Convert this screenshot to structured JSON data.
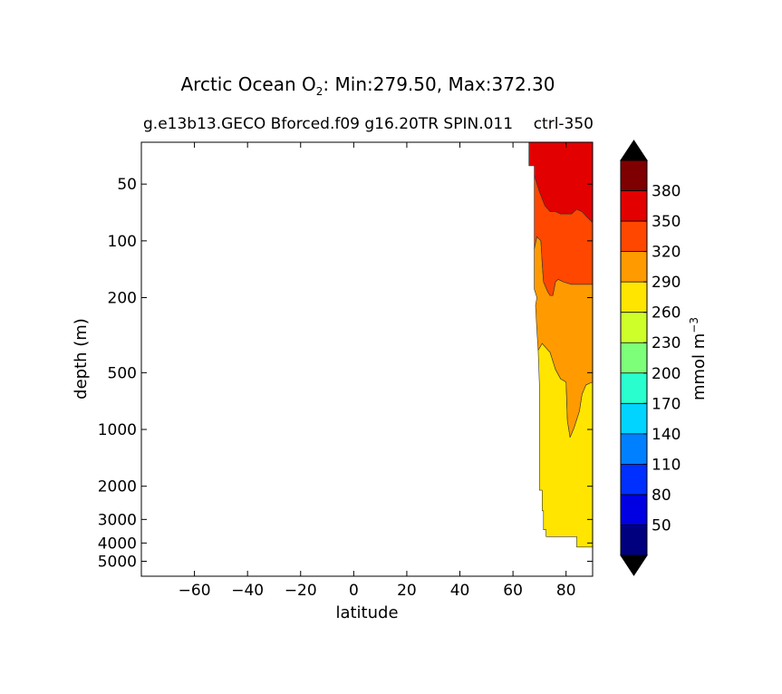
{
  "chart_data": {
    "type": "contourf",
    "title": {
      "prefix": "Arctic Ocean O",
      "subscript": "2",
      "suffix": ": Min:279.50, Max:372.30"
    },
    "subtitle_left": "g.e13b13.GECO Bforced.f09 g16.20TR SPIN.011",
    "subtitle_right": "ctrl-350",
    "xlabel": "latitude",
    "ylabel": "depth (m)",
    "xlim": [
      -80,
      90
    ],
    "xticks": [
      -60,
      -40,
      -20,
      0,
      20,
      40,
      60,
      80
    ],
    "xtick_labels": [
      "−60",
      "−40",
      "−20",
      "0",
      "20",
      "40",
      "60",
      "80"
    ],
    "yscale": "log",
    "ylim": [
      30,
      6000
    ],
    "yticks": [
      50,
      100,
      200,
      500,
      1000,
      2000,
      3000,
      4000,
      5000
    ],
    "ytick_labels": [
      "50",
      "100",
      "200",
      "500",
      "1000",
      "2000",
      "3000",
      "4000",
      "5000"
    ],
    "colorbar": {
      "label_base": "mmol m",
      "label_exp": "−3",
      "levels": [
        20,
        50,
        80,
        110,
        140,
        170,
        200,
        230,
        260,
        290,
        320,
        350,
        380,
        410
      ],
      "tick_values": [
        50,
        80,
        110,
        140,
        170,
        200,
        230,
        260,
        290,
        320,
        350,
        380
      ],
      "colors": [
        "#00007f",
        "#0000e3",
        "#0030ff",
        "#0080ff",
        "#00d4ff",
        "#29ffce",
        "#7dff7a",
        "#ceff29",
        "#ffe500",
        "#ff9b00",
        "#ff4700",
        "#e30000",
        "#7f0000"
      ],
      "extend": "both",
      "under_color": "#000000",
      "over_color": "#000000"
    },
    "regions": [
      {
        "name": "260–290 mmol m⁻³",
        "color": "#ffe500",
        "polygon": [
          [
            69.5,
            380
          ],
          [
            71,
            350
          ],
          [
            74,
            390
          ],
          [
            76,
            480
          ],
          [
            78,
            540
          ],
          [
            80,
            560
          ],
          [
            80.5,
            900
          ],
          [
            81.5,
            1100
          ],
          [
            83,
            980
          ],
          [
            85,
            800
          ],
          [
            86,
            650
          ],
          [
            87.5,
            580
          ],
          [
            90,
            560
          ],
          [
            90,
            4200
          ],
          [
            88,
            4200
          ],
          [
            86,
            4200
          ],
          [
            84,
            4200
          ],
          [
            84,
            3700
          ],
          [
            82,
            3700
          ],
          [
            80,
            3700
          ],
          [
            78,
            3700
          ],
          [
            76,
            3700
          ],
          [
            72.5,
            3700
          ],
          [
            72.5,
            3400
          ],
          [
            71.5,
            3400
          ],
          [
            71.5,
            2700
          ],
          [
            71,
            2700
          ],
          [
            71,
            2100
          ],
          [
            70,
            2100
          ],
          [
            70,
            1500
          ],
          [
            70,
            600
          ]
        ]
      },
      {
        "name": "290–320 mmol m⁻³",
        "color": "#ff9b00",
        "polygon": [
          [
            68,
            110
          ],
          [
            69,
            95
          ],
          [
            70.5,
            100
          ],
          [
            71,
            130
          ],
          [
            71.5,
            165
          ],
          [
            73,
            185
          ],
          [
            74,
            195
          ],
          [
            75,
            195
          ],
          [
            76,
            165
          ],
          [
            77,
            160
          ],
          [
            79,
            165
          ],
          [
            82,
            170
          ],
          [
            84,
            170
          ],
          [
            86,
            170
          ],
          [
            88,
            170
          ],
          [
            90,
            170
          ],
          [
            90,
            560
          ],
          [
            87.5,
            580
          ],
          [
            86,
            650
          ],
          [
            85,
            800
          ],
          [
            83,
            980
          ],
          [
            81.5,
            1100
          ],
          [
            80.5,
            900
          ],
          [
            80,
            560
          ],
          [
            78,
            540
          ],
          [
            76,
            480
          ],
          [
            74,
            390
          ],
          [
            71,
            350
          ],
          [
            69.5,
            380
          ],
          [
            69,
            300
          ],
          [
            68.5,
            220
          ],
          [
            69,
            200
          ],
          [
            68,
            180
          ]
        ]
      },
      {
        "name": "320–350 mmol m⁻³",
        "color": "#ff4700",
        "polygon": [
          [
            68,
            45
          ],
          [
            70,
            55
          ],
          [
            72,
            65
          ],
          [
            74,
            70
          ],
          [
            76,
            70
          ],
          [
            78,
            72
          ],
          [
            80,
            72
          ],
          [
            82,
            72
          ],
          [
            84,
            68
          ],
          [
            86,
            70
          ],
          [
            88,
            75
          ],
          [
            90,
            80
          ],
          [
            90,
            170
          ],
          [
            88,
            170
          ],
          [
            86,
            170
          ],
          [
            84,
            170
          ],
          [
            82,
            170
          ],
          [
            79,
            165
          ],
          [
            77,
            160
          ],
          [
            76,
            165
          ],
          [
            75,
            195
          ],
          [
            74,
            195
          ],
          [
            73,
            185
          ],
          [
            71.5,
            165
          ],
          [
            71,
            130
          ],
          [
            70.5,
            100
          ],
          [
            69,
            95
          ],
          [
            68,
            110
          ]
        ]
      },
      {
        "name": "350–380 mmol m⁻³",
        "color": "#e30000",
        "polygon": [
          [
            66,
            30
          ],
          [
            90,
            30
          ],
          [
            90,
            80
          ],
          [
            88,
            75
          ],
          [
            86,
            70
          ],
          [
            84,
            68
          ],
          [
            82,
            72
          ],
          [
            80,
            72
          ],
          [
            78,
            72
          ],
          [
            76,
            70
          ],
          [
            74,
            70
          ],
          [
            72,
            65
          ],
          [
            70,
            55
          ],
          [
            68,
            45
          ],
          [
            68,
            40
          ],
          [
            66,
            40
          ]
        ]
      }
    ]
  }
}
